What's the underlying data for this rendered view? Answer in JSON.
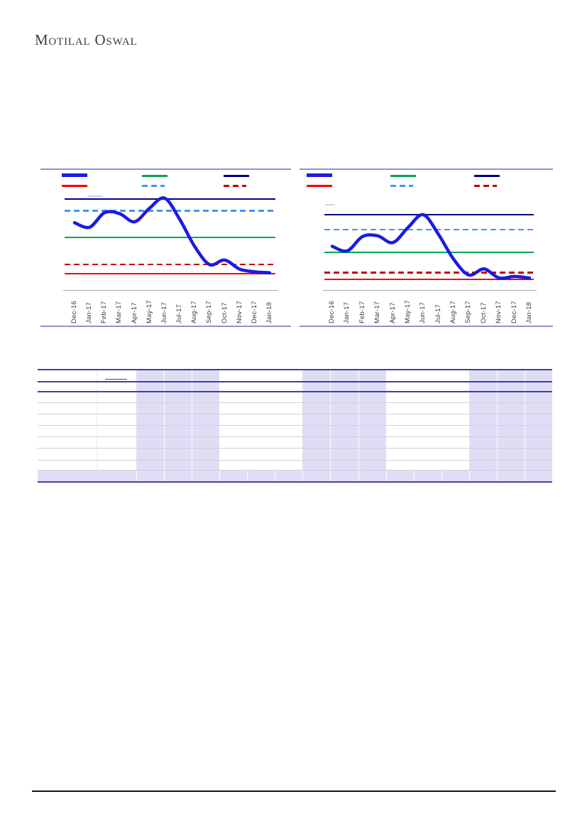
{
  "brand": {
    "logo_text": "Motilal Oswal"
  },
  "charts": {
    "x_labels": [
      "Dec-16",
      "Jan-17",
      "Feb-17",
      "Mar-17",
      "Apr-17",
      "May-17",
      "Jun-17",
      "Jul-17",
      "Aug-17",
      "Sep-17",
      "Oct-17",
      "Nov-17",
      "Dec-17",
      "Jan-18"
    ],
    "left": {
      "type": "line",
      "legend": {
        "row1": [
          {
            "color": "#1b1be0",
            "style": "thick"
          },
          {
            "color": "#00a651",
            "style": "solid"
          },
          {
            "color": "#00008b",
            "style": "solid"
          }
        ],
        "row2": [
          {
            "color": "#f40000",
            "style": "solid"
          },
          {
            "color": "#3f97f5",
            "style": "dashed"
          },
          {
            "color": "#c00000",
            "style": "dashed"
          }
        ]
      },
      "ref_lines": [
        {
          "color": "#00008b",
          "style": "solid",
          "level": 100
        },
        {
          "color": "#3f97f5",
          "style": "dashed",
          "level": 87
        },
        {
          "color": "#00a651",
          "style": "solid",
          "level": 58
        },
        {
          "color": "#c00000",
          "style": "dashed",
          "level": 28
        },
        {
          "color": "#f40000",
          "style": "solid",
          "level": 18
        }
      ],
      "series": {
        "color": "#1b1be0",
        "values": [
          74,
          69,
          85,
          84,
          75,
          90,
          101,
          78,
          48,
          28,
          33,
          23,
          20,
          19
        ]
      }
    },
    "right": {
      "type": "line",
      "legend": {
        "row1": [
          {
            "color": "#1b1be0",
            "style": "thick"
          },
          {
            "color": "#00a651",
            "style": "solid"
          },
          {
            "color": "#00008b",
            "style": "solid"
          }
        ],
        "row2": [
          {
            "color": "#f40000",
            "style": "solid"
          },
          {
            "color": "#3f97f5",
            "style": "dashed"
          },
          {
            "color": "#c00000",
            "style": "dashed"
          }
        ]
      },
      "ref_lines": [
        {
          "color": "#00008b",
          "style": "solid",
          "level": 100
        },
        {
          "color": "#3f97f5",
          "style": "dashed",
          "level": 80
        },
        {
          "color": "#00a651",
          "style": "solid",
          "level": 50
        },
        {
          "color": "#c00000",
          "style": "dashed",
          "level": 23
        },
        {
          "color": "#f40000",
          "style": "solid",
          "level": 14
        }
      ],
      "series": {
        "color": "#1b1be0",
        "values": [
          58,
          52,
          71,
          72,
          63,
          83,
          100,
          74,
          41,
          20,
          28,
          16,
          18,
          16
        ]
      }
    }
  },
  "table": {
    "header_rows": 2,
    "body_rows": 7,
    "has_shaded_total_row": true,
    "label_columns": 2,
    "value_columns": 15,
    "shaded_value_column_groups": [
      [
        1,
        2,
        3
      ],
      [
        7,
        8,
        9
      ],
      [
        13,
        14,
        15
      ]
    ],
    "colors": {
      "border": "#41419b",
      "grid_line": "#d2d2d2",
      "band_fill": "#dfddf6"
    }
  },
  "footer": {
    "rule_color": "#161616"
  }
}
